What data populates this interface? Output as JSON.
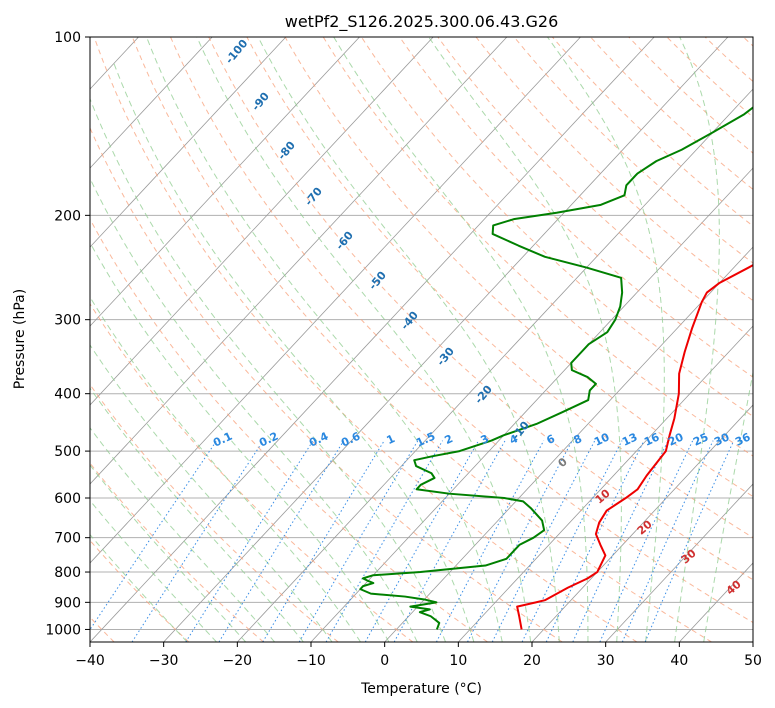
{
  "chart_data": {
    "type": "line",
    "subtype": "skew-t log-p diagram",
    "title": "wetPf2_S126.2025.300.06.43.G26",
    "xlabel": "Temperature (°C)",
    "ylabel": "Pressure (hPa)",
    "xlim": [
      -40,
      50
    ],
    "ylim": [
      1050,
      100
    ],
    "x_ticks": [
      -40,
      -30,
      -20,
      -10,
      0,
      10,
      20,
      30,
      40,
      50
    ],
    "x_tick_labels": [
      "−40",
      "−30",
      "−20",
      "−10",
      "0",
      "10",
      "20",
      "30",
      "40",
      "50"
    ],
    "y_ticks": [
      1000,
      900,
      800,
      700,
      600,
      500,
      400,
      300,
      200,
      100
    ],
    "y_tick_labels": [
      "1000",
      "900",
      "800",
      "700",
      "600",
      "500",
      "400",
      "300",
      "200",
      "100"
    ],
    "grid": true,
    "skew_degC_per_log_unit": 75,
    "series": [
      {
        "name": "Temperature",
        "color": "#ee0000",
        "points": [
          [
            17,
            1000
          ],
          [
            15,
            950
          ],
          [
            13.5,
            915
          ],
          [
            15.5,
            900
          ],
          [
            16.5,
            892
          ],
          [
            18,
            850
          ],
          [
            19.5,
            820
          ],
          [
            20,
            800
          ],
          [
            19,
            750
          ],
          [
            17,
            720
          ],
          [
            15,
            690
          ],
          [
            14,
            660
          ],
          [
            13.5,
            630
          ],
          [
            14.5,
            600
          ],
          [
            15,
            580
          ],
          [
            14.5,
            550
          ],
          [
            14,
            500
          ],
          [
            12.5,
            470
          ],
          [
            11,
            440
          ],
          [
            8.5,
            400
          ],
          [
            6,
            370
          ],
          [
            4,
            340
          ],
          [
            2,
            310
          ],
          [
            0,
            280
          ],
          [
            -0.5,
            270
          ],
          [
            0,
            260
          ],
          [
            2,
            245
          ],
          [
            4,
            230
          ],
          [
            5,
            215
          ],
          [
            4,
            195
          ],
          [
            2,
            180
          ],
          [
            1,
            165
          ],
          [
            1,
            150
          ],
          [
            3,
            140
          ],
          [
            5,
            130
          ],
          [
            6.5,
            120
          ],
          [
            6.5,
            110
          ],
          [
            7.5,
            100
          ]
        ]
      },
      {
        "name": "Dew point",
        "color": "#008000",
        "points": [
          [
            5.5,
            1000
          ],
          [
            5,
            975
          ],
          [
            3,
            950
          ],
          [
            1,
            935
          ],
          [
            2,
            925
          ],
          [
            -1,
            915
          ],
          [
            2,
            900
          ],
          [
            0,
            890
          ],
          [
            -3,
            880
          ],
          [
            -8,
            870
          ],
          [
            -10,
            855
          ],
          [
            -10,
            845
          ],
          [
            -9,
            835
          ],
          [
            -10,
            828
          ],
          [
            -11,
            820
          ],
          [
            -10,
            810
          ],
          [
            -4,
            800
          ],
          [
            0,
            790
          ],
          [
            4,
            780
          ],
          [
            6,
            760
          ],
          [
            6,
            740
          ],
          [
            6,
            720
          ],
          [
            7,
            700
          ],
          [
            7.5,
            680
          ],
          [
            6,
            655
          ],
          [
            3,
            625
          ],
          [
            1,
            608
          ],
          [
            -2,
            600
          ],
          [
            -10,
            590
          ],
          [
            -15,
            580
          ],
          [
            -15,
            570
          ],
          [
            -14,
            555
          ],
          [
            -15,
            545
          ],
          [
            -18,
            530
          ],
          [
            -19,
            518
          ],
          [
            -17,
            510
          ],
          [
            -14,
            500
          ],
          [
            -11,
            480
          ],
          [
            -10,
            470
          ],
          [
            -7,
            450
          ],
          [
            -5,
            430
          ],
          [
            -3,
            410
          ],
          [
            -4,
            395
          ],
          [
            -4,
            385
          ],
          [
            -6,
            375
          ],
          [
            -9,
            365
          ],
          [
            -10,
            355
          ],
          [
            -10,
            345
          ],
          [
            -10,
            330
          ],
          [
            -9,
            315
          ],
          [
            -9.5,
            300
          ],
          [
            -10.5,
            285
          ],
          [
            -12,
            270
          ],
          [
            -14,
            255
          ],
          [
            -20,
            245
          ],
          [
            -27,
            235
          ],
          [
            -32,
            225
          ],
          [
            -37,
            215
          ],
          [
            -38,
            208
          ],
          [
            -36,
            203
          ],
          [
            -31,
            198
          ],
          [
            -26,
            192
          ],
          [
            -24,
            185
          ],
          [
            -25,
            178
          ],
          [
            -25,
            170
          ],
          [
            -24,
            162
          ],
          [
            -22,
            155
          ],
          [
            -20,
            145
          ],
          [
            -18,
            135
          ],
          [
            -17,
            125
          ],
          [
            -16,
            115
          ],
          [
            -15,
            108
          ],
          [
            -14,
            100
          ]
        ]
      }
    ],
    "dry_adiabat_labels": [
      "-100",
      "-90",
      "-80",
      "-70",
      "-60",
      "-50",
      "-40",
      "-30",
      "-20",
      "-10"
    ],
    "moist_adiabat_labels": [
      "0",
      "10",
      "20",
      "30",
      "40"
    ],
    "mixing_ratio_labels": [
      "0.1",
      "0.2",
      "0.4",
      "0.6",
      "1",
      "1.5",
      "2",
      "3",
      "4",
      "6",
      "8",
      "10",
      "13",
      "16",
      "20",
      "25",
      "30",
      "36"
    ],
    "mixing_ratio_values": [
      0.1,
      0.2,
      0.4,
      0.6,
      1,
      1.5,
      2,
      3,
      4,
      6,
      8,
      10,
      13,
      16,
      20,
      25,
      30,
      36
    ],
    "colors": {
      "isotherm": "#9a9a9a",
      "isobar": "#b0b0b0",
      "dry_adiabat": "#f8a07a",
      "moist_adiabat": "#8fcc8f",
      "mixing_ratio": "#3a8ee6",
      "dry_label": "#1f6fb0",
      "moist_label_zero": "#7a7a7a",
      "moist_label": "#d03030",
      "mixing_label": "#2a88e0"
    }
  }
}
